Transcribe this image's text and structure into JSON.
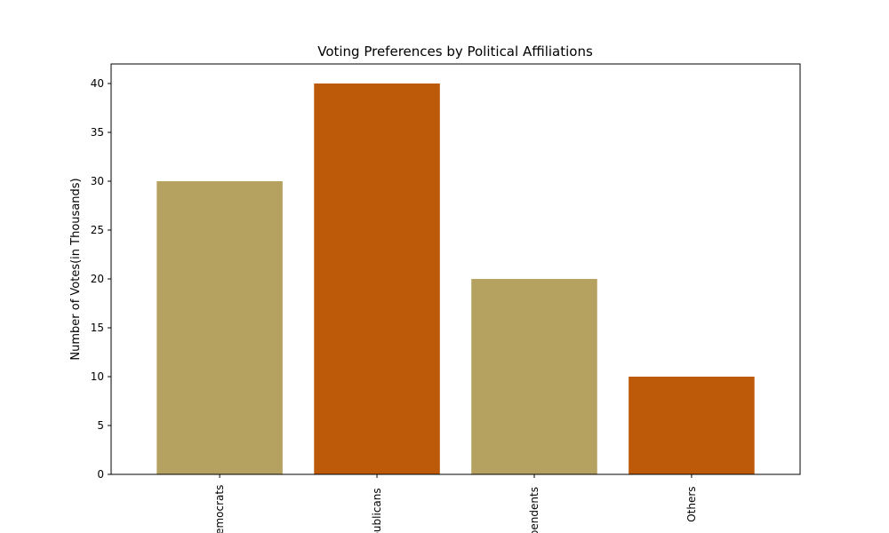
{
  "chart_data": {
    "type": "bar",
    "title": "Voting Preferences by Political Affiliations",
    "xlabel": "",
    "ylabel": "Number of Votes(in Thousands)",
    "categories": [
      "Democrats",
      "Republicans",
      "Independents",
      "Others"
    ],
    "values": [
      30,
      40,
      20,
      10
    ],
    "colors": [
      "#b5a160",
      "#bd5a09",
      "#b5a160",
      "#bd5a09"
    ],
    "ylim": [
      0,
      42
    ],
    "yticks": [
      0,
      5,
      10,
      15,
      20,
      25,
      30,
      35,
      40
    ],
    "grid": false,
    "x_tick_rotation": "vertical"
  }
}
